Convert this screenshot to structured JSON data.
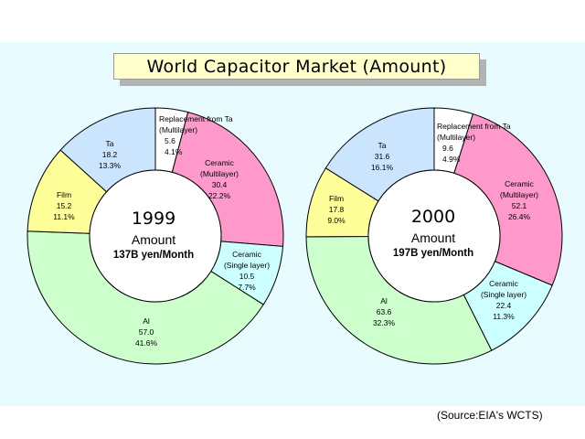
{
  "title": "World Capacitor Market (Amount)",
  "source": "(Source:EIA's WCTS)",
  "colors": {
    "Replacement from Ta (Multilayer)": "#ffffff",
    "Ceramic (Multilayer)": "#ff99cc",
    "Ceramic (Single layer)": "#ccffff",
    "Al": "#ccffcc",
    "Film": "#ffff99",
    "Ta": "#cce5ff",
    "panel": "#e8fcff"
  },
  "chart_data": [
    {
      "type": "pie",
      "year": "1999",
      "center_label": "Amount",
      "total_label": "137B yen/Month",
      "slices": [
        {
          "key": "replacement",
          "label_lines": [
            "Replacement from Ta",
            "(Multilayer)"
          ],
          "value_text": "5.6",
          "pct_text": "4.1%",
          "pct": 4.1
        },
        {
          "key": "ceramic_multi",
          "label_lines": [
            "Ceramic",
            "(Multilayer)"
          ],
          "value_text": "30.4",
          "pct_text": "22.2%",
          "pct": 22.2
        },
        {
          "key": "ceramic_single",
          "label_lines": [
            "Ceramic",
            "(Single layer)"
          ],
          "value_text": "10.5",
          "pct_text": "7.7%",
          "pct": 7.7
        },
        {
          "key": "al",
          "label_lines": [
            "Al"
          ],
          "value_text": "57.0",
          "pct_text": "41.6%",
          "pct": 41.6
        },
        {
          "key": "film",
          "label_lines": [
            "Film"
          ],
          "value_text": "15.2",
          "pct_text": "11.1%",
          "pct": 11.1
        },
        {
          "key": "ta",
          "label_lines": [
            "Ta"
          ],
          "value_text": "18.2",
          "pct_text": "13.3%",
          "pct": 13.3
        }
      ]
    },
    {
      "type": "pie",
      "year": "2000",
      "center_label": "Amount",
      "total_label": "197B yen/Month",
      "slices": [
        {
          "key": "replacement",
          "label_lines": [
            "Replacement from Ta",
            "(Multilayer)"
          ],
          "value_text": "9.6",
          "pct_text": "4.9%",
          "pct": 4.9
        },
        {
          "key": "ceramic_multi",
          "label_lines": [
            "Ceramic",
            "(Multilayer)"
          ],
          "value_text": "52.1",
          "pct_text": "26.4%",
          "pct": 26.4
        },
        {
          "key": "ceramic_single",
          "label_lines": [
            "Ceramic",
            "(Single layer)"
          ],
          "value_text": "22.4",
          "pct_text": "11.3%",
          "pct": 11.3
        },
        {
          "key": "al",
          "label_lines": [
            "Al"
          ],
          "value_text": "63.6",
          "pct_text": "32.3%",
          "pct": 32.3
        },
        {
          "key": "film",
          "label_lines": [
            "Film"
          ],
          "value_text": "17.8",
          "pct_text": "9.0%",
          "pct": 9.0
        },
        {
          "key": "ta",
          "label_lines": [
            "Ta"
          ],
          "value_text": "31.6",
          "pct_text": "16.1%",
          "pct": 16.1
        }
      ]
    }
  ]
}
